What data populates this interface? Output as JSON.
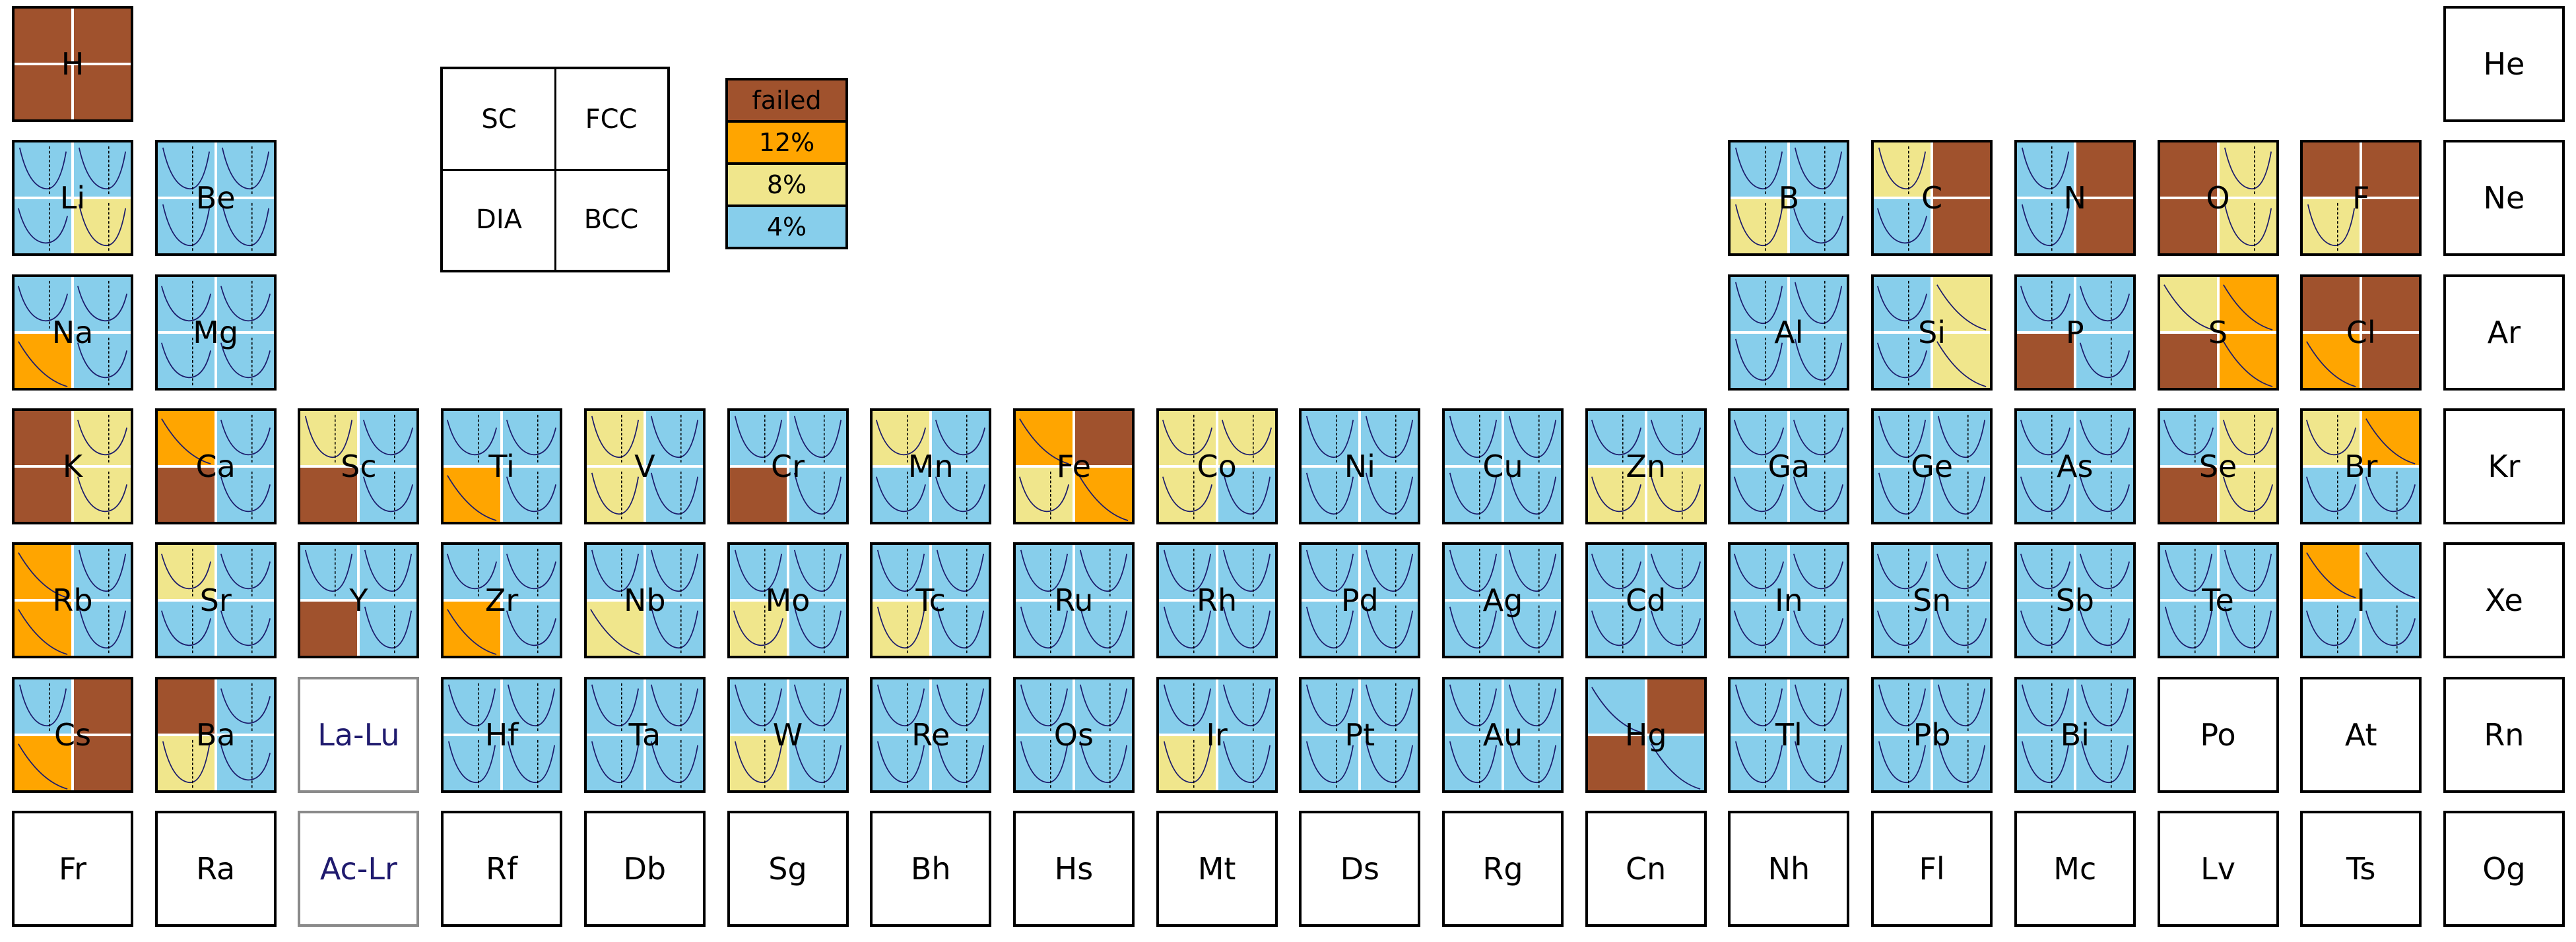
{
  "palette": {
    "failed": "#a0522d",
    "12%": "#ffa500",
    "8%": "#f0e68c",
    "4%": "#87ceeb",
    "curve": "#1c1c6c",
    "dash": "#000000"
  },
  "chart_data": {
    "type": "heatmap",
    "structures_key": [
      "SC",
      "FCC",
      "DIA",
      "BCC"
    ],
    "legend": [
      "failed",
      "12%",
      "8%",
      "4%"
    ],
    "note_quadrants": "q = [top-left, top-right, bottom-left, bottom-right]; c = [curve-type per quadrant]; values are legend categories",
    "elements": [
      {
        "sym": "H",
        "row": 1,
        "col": 1,
        "q": [
          "failed",
          "failed",
          "failed",
          "failed"
        ],
        "c": [
          0,
          0,
          0,
          0
        ]
      },
      {
        "sym": "He",
        "row": 1,
        "col": 18,
        "q": [],
        "c": []
      },
      {
        "sym": "Li",
        "row": 2,
        "col": 1,
        "q": [
          "4%",
          "4%",
          "4%",
          "8%"
        ],
        "c": [
          1,
          1,
          2,
          1
        ]
      },
      {
        "sym": "Be",
        "row": 2,
        "col": 2,
        "q": [
          "4%",
          "4%",
          "4%",
          "4%"
        ],
        "c": [
          1,
          1,
          1,
          1
        ]
      },
      {
        "sym": "B",
        "row": 2,
        "col": 13,
        "q": [
          "4%",
          "4%",
          "8%",
          "4%"
        ],
        "c": [
          1,
          1,
          1,
          2
        ]
      },
      {
        "sym": "C",
        "row": 2,
        "col": 14,
        "q": [
          "8%",
          "failed",
          "4%",
          "failed"
        ],
        "c": [
          1,
          0,
          2,
          0
        ]
      },
      {
        "sym": "N",
        "row": 2,
        "col": 15,
        "q": [
          "4%",
          "failed",
          "4%",
          "failed"
        ],
        "c": [
          1,
          0,
          1,
          0
        ]
      },
      {
        "sym": "O",
        "row": 2,
        "col": 16,
        "q": [
          "failed",
          "8%",
          "failed",
          "8%"
        ],
        "c": [
          0,
          1,
          0,
          1
        ]
      },
      {
        "sym": "F",
        "row": 2,
        "col": 17,
        "q": [
          "failed",
          "failed",
          "8%",
          "failed"
        ],
        "c": [
          0,
          0,
          1,
          0
        ]
      },
      {
        "sym": "Ne",
        "row": 2,
        "col": 18,
        "q": [],
        "c": []
      },
      {
        "sym": "Na",
        "row": 3,
        "col": 1,
        "q": [
          "4%",
          "4%",
          "12%",
          "4%"
        ],
        "c": [
          2,
          2,
          3,
          2
        ]
      },
      {
        "sym": "Mg",
        "row": 3,
        "col": 2,
        "q": [
          "4%",
          "4%",
          "4%",
          "4%"
        ],
        "c": [
          2,
          2,
          2,
          2
        ]
      },
      {
        "sym": "Al",
        "row": 3,
        "col": 13,
        "q": [
          "4%",
          "4%",
          "4%",
          "4%"
        ],
        "c": [
          1,
          1,
          1,
          1
        ]
      },
      {
        "sym": "Si",
        "row": 3,
        "col": 14,
        "q": [
          "4%",
          "8%",
          "4%",
          "8%"
        ],
        "c": [
          2,
          3,
          2,
          3
        ]
      },
      {
        "sym": "P",
        "row": 3,
        "col": 15,
        "q": [
          "4%",
          "4%",
          "failed",
          "4%"
        ],
        "c": [
          2,
          2,
          0,
          2
        ]
      },
      {
        "sym": "S",
        "row": 3,
        "col": 16,
        "q": [
          "8%",
          "12%",
          "failed",
          "12%"
        ],
        "c": [
          3,
          3,
          0,
          3
        ]
      },
      {
        "sym": "Cl",
        "row": 3,
        "col": 17,
        "q": [
          "failed",
          "failed",
          "12%",
          "failed"
        ],
        "c": [
          0,
          0,
          3,
          0
        ]
      },
      {
        "sym": "Ar",
        "row": 3,
        "col": 18,
        "q": [],
        "c": []
      },
      {
        "sym": "K",
        "row": 4,
        "col": 1,
        "q": [
          "failed",
          "8%",
          "failed",
          "8%"
        ],
        "c": [
          0,
          2,
          0,
          2
        ]
      },
      {
        "sym": "Ca",
        "row": 4,
        "col": 2,
        "q": [
          "12%",
          "4%",
          "failed",
          "4%"
        ],
        "c": [
          3,
          2,
          0,
          2
        ]
      },
      {
        "sym": "Sc",
        "row": 4,
        "col": 3,
        "q": [
          "8%",
          "4%",
          "failed",
          "4%"
        ],
        "c": [
          1,
          2,
          0,
          2
        ]
      },
      {
        "sym": "Ti",
        "row": 4,
        "col": 4,
        "q": [
          "4%",
          "4%",
          "12%",
          "4%"
        ],
        "c": [
          2,
          2,
          3,
          2
        ]
      },
      {
        "sym": "V",
        "row": 4,
        "col": 5,
        "q": [
          "8%",
          "4%",
          "8%",
          "4%"
        ],
        "c": [
          1,
          1,
          1,
          1
        ]
      },
      {
        "sym": "Cr",
        "row": 4,
        "col": 6,
        "q": [
          "4%",
          "4%",
          "failed",
          "4%"
        ],
        "c": [
          1,
          1,
          0,
          1
        ]
      },
      {
        "sym": "Mn",
        "row": 4,
        "col": 7,
        "q": [
          "8%",
          "4%",
          "4%",
          "4%"
        ],
        "c": [
          2,
          2,
          2,
          2
        ]
      },
      {
        "sym": "Fe",
        "row": 4,
        "col": 8,
        "q": [
          "12%",
          "failed",
          "8%",
          "12%"
        ],
        "c": [
          3,
          0,
          2,
          3
        ]
      },
      {
        "sym": "Co",
        "row": 4,
        "col": 9,
        "q": [
          "8%",
          "8%",
          "8%",
          "4%"
        ],
        "c": [
          2,
          2,
          2,
          1
        ]
      },
      {
        "sym": "Ni",
        "row": 4,
        "col": 10,
        "q": [
          "4%",
          "4%",
          "4%",
          "4%"
        ],
        "c": [
          1,
          1,
          1,
          1
        ]
      },
      {
        "sym": "Cu",
        "row": 4,
        "col": 11,
        "q": [
          "4%",
          "4%",
          "4%",
          "4%"
        ],
        "c": [
          1,
          1,
          1,
          1
        ]
      },
      {
        "sym": "Zn",
        "row": 4,
        "col": 12,
        "q": [
          "4%",
          "4%",
          "8%",
          "8%"
        ],
        "c": [
          2,
          2,
          2,
          2
        ]
      },
      {
        "sym": "Ga",
        "row": 4,
        "col": 13,
        "q": [
          "4%",
          "4%",
          "4%",
          "4%"
        ],
        "c": [
          2,
          2,
          2,
          2
        ]
      },
      {
        "sym": "Ge",
        "row": 4,
        "col": 14,
        "q": [
          "4%",
          "4%",
          "4%",
          "4%"
        ],
        "c": [
          1,
          1,
          1,
          1
        ]
      },
      {
        "sym": "As",
        "row": 4,
        "col": 15,
        "q": [
          "4%",
          "4%",
          "4%",
          "4%"
        ],
        "c": [
          2,
          2,
          2,
          2
        ]
      },
      {
        "sym": "Se",
        "row": 4,
        "col": 16,
        "q": [
          "4%",
          "8%",
          "failed",
          "8%"
        ],
        "c": [
          2,
          2,
          0,
          2
        ]
      },
      {
        "sym": "Br",
        "row": 4,
        "col": 17,
        "q": [
          "8%",
          "12%",
          "4%",
          "4%"
        ],
        "c": [
          2,
          3,
          2,
          2
        ]
      },
      {
        "sym": "Kr",
        "row": 4,
        "col": 18,
        "q": [],
        "c": []
      },
      {
        "sym": "Rb",
        "row": 5,
        "col": 1,
        "q": [
          "12%",
          "4%",
          "12%",
          "4%"
        ],
        "c": [
          3,
          1,
          3,
          1
        ]
      },
      {
        "sym": "Sr",
        "row": 5,
        "col": 2,
        "q": [
          "8%",
          "4%",
          "4%",
          "4%"
        ],
        "c": [
          2,
          2,
          2,
          2
        ]
      },
      {
        "sym": "Y",
        "row": 5,
        "col": 3,
        "q": [
          "4%",
          "4%",
          "failed",
          "4%"
        ],
        "c": [
          1,
          1,
          0,
          1
        ]
      },
      {
        "sym": "Zr",
        "row": 5,
        "col": 4,
        "q": [
          "4%",
          "4%",
          "12%",
          "4%"
        ],
        "c": [
          2,
          2,
          3,
          2
        ]
      },
      {
        "sym": "Nb",
        "row": 5,
        "col": 5,
        "q": [
          "4%",
          "4%",
          "8%",
          "4%"
        ],
        "c": [
          1,
          1,
          3,
          1
        ]
      },
      {
        "sym": "Mo",
        "row": 5,
        "col": 6,
        "q": [
          "4%",
          "4%",
          "8%",
          "4%"
        ],
        "c": [
          1,
          1,
          2,
          1
        ]
      },
      {
        "sym": "Tc",
        "row": 5,
        "col": 7,
        "q": [
          "4%",
          "4%",
          "8%",
          "4%"
        ],
        "c": [
          1,
          1,
          1,
          1
        ]
      },
      {
        "sym": "Ru",
        "row": 5,
        "col": 8,
        "q": [
          "4%",
          "4%",
          "4%",
          "4%"
        ],
        "c": [
          1,
          1,
          1,
          1
        ]
      },
      {
        "sym": "Rh",
        "row": 5,
        "col": 9,
        "q": [
          "4%",
          "4%",
          "4%",
          "4%"
        ],
        "c": [
          1,
          1,
          1,
          1
        ]
      },
      {
        "sym": "Pd",
        "row": 5,
        "col": 10,
        "q": [
          "4%",
          "4%",
          "4%",
          "4%"
        ],
        "c": [
          1,
          1,
          1,
          1
        ]
      },
      {
        "sym": "Ag",
        "row": 5,
        "col": 11,
        "q": [
          "4%",
          "4%",
          "4%",
          "4%"
        ],
        "c": [
          1,
          1,
          1,
          1
        ]
      },
      {
        "sym": "Cd",
        "row": 5,
        "col": 12,
        "q": [
          "4%",
          "4%",
          "4%",
          "4%"
        ],
        "c": [
          2,
          2,
          2,
          2
        ]
      },
      {
        "sym": "In",
        "row": 5,
        "col": 13,
        "q": [
          "4%",
          "4%",
          "4%",
          "4%"
        ],
        "c": [
          2,
          2,
          2,
          2
        ]
      },
      {
        "sym": "Sn",
        "row": 5,
        "col": 14,
        "q": [
          "4%",
          "4%",
          "4%",
          "4%"
        ],
        "c": [
          2,
          2,
          2,
          2
        ]
      },
      {
        "sym": "Sb",
        "row": 5,
        "col": 15,
        "q": [
          "4%",
          "4%",
          "4%",
          "4%"
        ],
        "c": [
          2,
          2,
          2,
          2
        ]
      },
      {
        "sym": "Te",
        "row": 5,
        "col": 16,
        "q": [
          "4%",
          "4%",
          "4%",
          "4%"
        ],
        "c": [
          1,
          1,
          1,
          1
        ]
      },
      {
        "sym": "I",
        "row": 5,
        "col": 17,
        "q": [
          "12%",
          "4%",
          "4%",
          "4%"
        ],
        "c": [
          3,
          3,
          2,
          2
        ]
      },
      {
        "sym": "Xe",
        "row": 5,
        "col": 18,
        "q": [],
        "c": []
      },
      {
        "sym": "Cs",
        "row": 6,
        "col": 1,
        "q": [
          "4%",
          "failed",
          "12%",
          "failed"
        ],
        "c": [
          1,
          0,
          3,
          0
        ]
      },
      {
        "sym": "Ba",
        "row": 6,
        "col": 2,
        "q": [
          "failed",
          "4%",
          "8%",
          "4%"
        ],
        "c": [
          0,
          2,
          1,
          2
        ]
      },
      {
        "sym": "La-Lu",
        "row": 6,
        "col": 3,
        "group": true,
        "q": [],
        "c": []
      },
      {
        "sym": "Hf",
        "row": 6,
        "col": 4,
        "q": [
          "4%",
          "4%",
          "4%",
          "4%"
        ],
        "c": [
          1,
          1,
          1,
          1
        ]
      },
      {
        "sym": "Ta",
        "row": 6,
        "col": 5,
        "q": [
          "4%",
          "4%",
          "4%",
          "4%"
        ],
        "c": [
          1,
          1,
          1,
          1
        ]
      },
      {
        "sym": "W",
        "row": 6,
        "col": 6,
        "q": [
          "4%",
          "4%",
          "8%",
          "4%"
        ],
        "c": [
          1,
          1,
          1,
          1
        ]
      },
      {
        "sym": "Re",
        "row": 6,
        "col": 7,
        "q": [
          "4%",
          "4%",
          "4%",
          "4%"
        ],
        "c": [
          1,
          1,
          1,
          1
        ]
      },
      {
        "sym": "Os",
        "row": 6,
        "col": 8,
        "q": [
          "4%",
          "4%",
          "4%",
          "4%"
        ],
        "c": [
          1,
          1,
          1,
          1
        ]
      },
      {
        "sym": "Ir",
        "row": 6,
        "col": 9,
        "q": [
          "4%",
          "4%",
          "8%",
          "4%"
        ],
        "c": [
          1,
          1,
          1,
          1
        ]
      },
      {
        "sym": "Pt",
        "row": 6,
        "col": 10,
        "q": [
          "4%",
          "4%",
          "4%",
          "4%"
        ],
        "c": [
          1,
          1,
          1,
          1
        ]
      },
      {
        "sym": "Au",
        "row": 6,
        "col": 11,
        "q": [
          "4%",
          "4%",
          "4%",
          "4%"
        ],
        "c": [
          1,
          1,
          1,
          1
        ]
      },
      {
        "sym": "Hg",
        "row": 6,
        "col": 12,
        "q": [
          "4%",
          "failed",
          "failed",
          "4%"
        ],
        "c": [
          3,
          0,
          0,
          3
        ]
      },
      {
        "sym": "Tl",
        "row": 6,
        "col": 13,
        "q": [
          "4%",
          "4%",
          "4%",
          "4%"
        ],
        "c": [
          1,
          1,
          1,
          1
        ]
      },
      {
        "sym": "Pb",
        "row": 6,
        "col": 14,
        "q": [
          "4%",
          "4%",
          "4%",
          "4%"
        ],
        "c": [
          1,
          1,
          1,
          1
        ]
      },
      {
        "sym": "Bi",
        "row": 6,
        "col": 15,
        "q": [
          "4%",
          "4%",
          "4%",
          "4%"
        ],
        "c": [
          1,
          1,
          1,
          1
        ]
      },
      {
        "sym": "Po",
        "row": 6,
        "col": 16,
        "q": [],
        "c": []
      },
      {
        "sym": "At",
        "row": 6,
        "col": 17,
        "q": [],
        "c": []
      },
      {
        "sym": "Rn",
        "row": 6,
        "col": 18,
        "q": [],
        "c": []
      },
      {
        "sym": "Fr",
        "row": 7,
        "col": 1,
        "q": [],
        "c": []
      },
      {
        "sym": "Ra",
        "row": 7,
        "col": 2,
        "q": [],
        "c": []
      },
      {
        "sym": "Ac-Lr",
        "row": 7,
        "col": 3,
        "group": true,
        "q": [],
        "c": []
      },
      {
        "sym": "Rf",
        "row": 7,
        "col": 4,
        "q": [],
        "c": []
      },
      {
        "sym": "Db",
        "row": 7,
        "col": 5,
        "q": [],
        "c": []
      },
      {
        "sym": "Sg",
        "row": 7,
        "col": 6,
        "q": [],
        "c": []
      },
      {
        "sym": "Bh",
        "row": 7,
        "col": 7,
        "q": [],
        "c": []
      },
      {
        "sym": "Hs",
        "row": 7,
        "col": 8,
        "q": [],
        "c": []
      },
      {
        "sym": "Mt",
        "row": 7,
        "col": 9,
        "q": [],
        "c": []
      },
      {
        "sym": "Ds",
        "row": 7,
        "col": 10,
        "q": [],
        "c": []
      },
      {
        "sym": "Rg",
        "row": 7,
        "col": 11,
        "q": [],
        "c": []
      },
      {
        "sym": "Cn",
        "row": 7,
        "col": 12,
        "q": [],
        "c": []
      },
      {
        "sym": "Nh",
        "row": 7,
        "col": 13,
        "q": [],
        "c": []
      },
      {
        "sym": "Fl",
        "row": 7,
        "col": 14,
        "q": [],
        "c": []
      },
      {
        "sym": "Mc",
        "row": 7,
        "col": 15,
        "q": [],
        "c": []
      },
      {
        "sym": "Lv",
        "row": 7,
        "col": 16,
        "q": [],
        "c": []
      },
      {
        "sym": "Ts",
        "row": 7,
        "col": 17,
        "q": [],
        "c": []
      },
      {
        "sym": "Og",
        "row": 7,
        "col": 18,
        "q": [],
        "c": []
      }
    ]
  }
}
